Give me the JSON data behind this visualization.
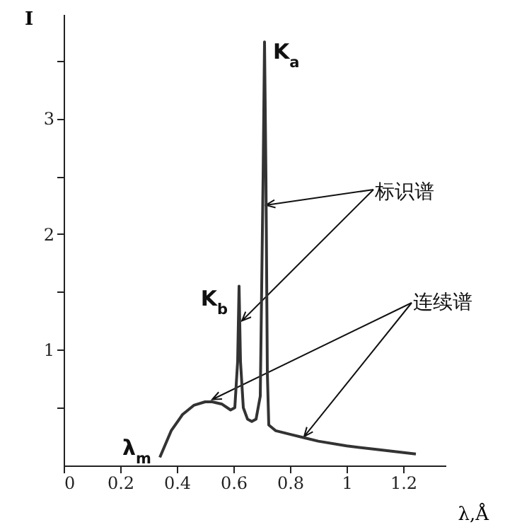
{
  "chart_data": {
    "type": "line",
    "xlabel": "λ,Å",
    "ylabel": "I",
    "x": [
      0.34,
      0.38,
      0.42,
      0.46,
      0.5,
      0.525,
      0.56,
      0.59,
      0.605,
      0.615,
      0.62,
      0.625,
      0.635,
      0.65,
      0.665,
      0.68,
      0.695,
      0.705,
      0.71,
      0.715,
      0.72,
      0.725,
      0.75,
      0.8,
      0.85,
      0.9,
      1.0,
      1.1,
      1.245
    ],
    "series": [
      {
        "color": "#333333",
        "values": [
          0.07,
          0.3,
          0.44,
          0.52,
          0.55,
          0.55,
          0.53,
          0.48,
          0.5,
          0.9,
          1.55,
          0.9,
          0.5,
          0.4,
          0.38,
          0.4,
          0.6,
          2.5,
          3.66,
          2.5,
          0.8,
          0.35,
          0.3,
          0.27,
          0.24,
          0.21,
          0.17,
          0.14,
          0.1
        ]
      }
    ],
    "xlim": [
      0,
      1.35
    ],
    "ylim": [
      0,
      3.9
    ],
    "xticks": [
      0,
      0.2,
      0.4,
      0.6,
      0.8,
      1.0,
      1.2
    ],
    "yticks": [
      {
        "value": 0.5,
        "label": null
      },
      1,
      {
        "value": 1.5,
        "label": null
      },
      2,
      {
        "value": 2.5,
        "label": null
      },
      3,
      {
        "value": 3.5,
        "label": null
      }
    ],
    "grid": false,
    "marker": "none",
    "line_style": "solid",
    "annotations": [
      {
        "text": "K$_{a}$",
        "x": 0.71,
        "y": 3.66
      },
      {
        "text": "K$_{b}$",
        "x": 0.62,
        "y": 1.55
      },
      {
        "text": "λ$_{m}$",
        "x": 0.34,
        "y": 0.07
      },
      {
        "text": "标识谱",
        "x": 0.715,
        "y": 2.25
      },
      {
        "text": "连续谱",
        "x": 0.525,
        "y": 0.57
      }
    ]
  }
}
